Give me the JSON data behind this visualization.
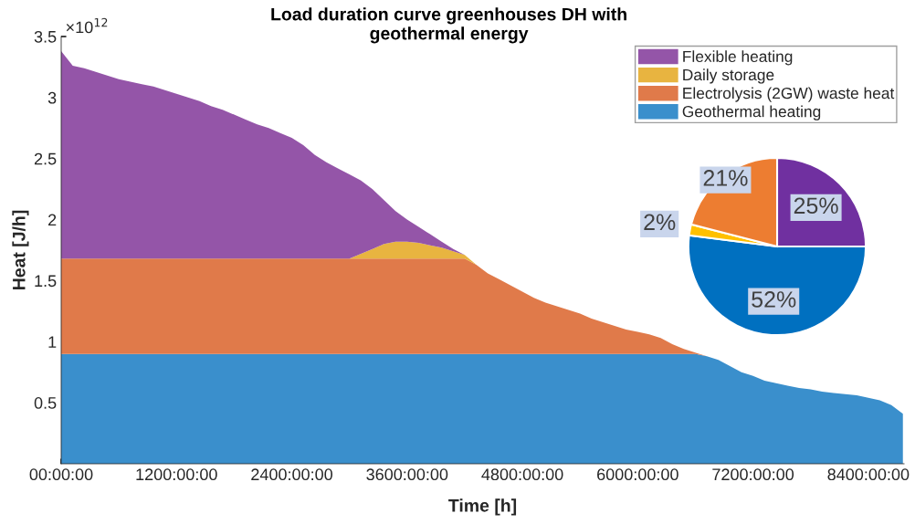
{
  "chart_data": [
    {
      "type": "area",
      "stacked": true,
      "title": "Load duration curve greenhouses DH with\ngeothermal energy",
      "xlabel": "Time [h]",
      "ylabel": "Heat [J/h]",
      "annotations": [
        "×10$^{12}$"
      ],
      "categories": [
        "00:00:00",
        null,
        null,
        null,
        null,
        null,
        null,
        null,
        null,
        null,
        "1200:00:00",
        null,
        null,
        null,
        null,
        null,
        null,
        null,
        null,
        null,
        "2400:00:00",
        null,
        null,
        null,
        null,
        null,
        null,
        null,
        null,
        null,
        "3600:00:00",
        null,
        null,
        null,
        null,
        null,
        null,
        null,
        null,
        null,
        "4800:00:00",
        null,
        null,
        null,
        null,
        null,
        null,
        null,
        null,
        null,
        "6000:00:00",
        null,
        null,
        null,
        null,
        null,
        null,
        null,
        null,
        null,
        "7200:00:00",
        null,
        null,
        null,
        null,
        null,
        null,
        null,
        null,
        null,
        "8400:00:00",
        null,
        null,
        null
      ],
      "series": [
        {
          "name": "Geothermal heating",
          "color": "#3a8fcc",
          "values": [
            0.9,
            0.9,
            0.9,
            0.9,
            0.9,
            0.9,
            0.9,
            0.9,
            0.9,
            0.9,
            0.9,
            0.9,
            0.9,
            0.9,
            0.9,
            0.9,
            0.9,
            0.9,
            0.9,
            0.9,
            0.9,
            0.9,
            0.9,
            0.9,
            0.9,
            0.9,
            0.9,
            0.9,
            0.9,
            0.9,
            0.9,
            0.9,
            0.9,
            0.9,
            0.9,
            0.9,
            0.9,
            0.9,
            0.9,
            0.9,
            0.9,
            0.9,
            0.9,
            0.9,
            0.9,
            0.9,
            0.9,
            0.9,
            0.9,
            0.9,
            0.9,
            0.9,
            0.9,
            0.9,
            0.9,
            0.9,
            0.88,
            0.85,
            0.8,
            0.75,
            0.72,
            0.68,
            0.66,
            0.64,
            0.62,
            0.61,
            0.59,
            0.58,
            0.57,
            0.56,
            0.54,
            0.52,
            0.48,
            0.41
          ]
        },
        {
          "name": "Electrolysis (2GW) waste heat",
          "color": "#e07a4a",
          "values": [
            0.78,
            0.78,
            0.78,
            0.78,
            0.78,
            0.78,
            0.78,
            0.78,
            0.78,
            0.78,
            0.78,
            0.78,
            0.78,
            0.78,
            0.78,
            0.78,
            0.78,
            0.78,
            0.78,
            0.78,
            0.78,
            0.78,
            0.78,
            0.78,
            0.78,
            0.78,
            0.78,
            0.78,
            0.78,
            0.78,
            0.78,
            0.78,
            0.78,
            0.78,
            0.78,
            0.78,
            0.73,
            0.66,
            0.61,
            0.56,
            0.51,
            0.46,
            0.42,
            0.39,
            0.36,
            0.33,
            0.29,
            0.26,
            0.23,
            0.2,
            0.18,
            0.16,
            0.13,
            0.08,
            0.04,
            0.01,
            0,
            0,
            0,
            0,
            0,
            0,
            0,
            0,
            0,
            0,
            0,
            0,
            0,
            0,
            0,
            0,
            0,
            0
          ]
        },
        {
          "name": "Daily storage",
          "color": "#e8b440",
          "values": [
            0,
            0,
            0,
            0,
            0,
            0,
            0,
            0,
            0,
            0,
            0,
            0,
            0,
            0,
            0,
            0,
            0,
            0,
            0,
            0,
            0,
            0,
            0,
            0,
            0,
            0,
            0.04,
            0.08,
            0.12,
            0.14,
            0.14,
            0.13,
            0.11,
            0.09,
            0.06,
            0.03,
            0,
            0,
            0,
            0,
            0,
            0,
            0,
            0,
            0,
            0,
            0,
            0,
            0,
            0,
            0,
            0,
            0,
            0,
            0,
            0,
            0,
            0,
            0,
            0,
            0,
            0,
            0,
            0,
            0,
            0,
            0,
            0,
            0,
            0,
            0,
            0,
            0,
            0
          ]
        },
        {
          "name": "Flexible heating",
          "color": "#9455a8",
          "values": [
            1.7,
            1.58,
            1.56,
            1.53,
            1.5,
            1.47,
            1.45,
            1.43,
            1.41,
            1.38,
            1.35,
            1.32,
            1.29,
            1.25,
            1.22,
            1.18,
            1.14,
            1.1,
            1.07,
            1.03,
            0.99,
            0.93,
            0.85,
            0.79,
            0.74,
            0.69,
            0.6,
            0.49,
            0.36,
            0.25,
            0.18,
            0.13,
            0.09,
            0.05,
            0.02,
            0,
            0,
            0,
            0,
            0,
            0,
            0,
            0,
            0,
            0,
            0,
            0,
            0,
            0,
            0,
            0,
            0,
            0,
            0,
            0,
            0,
            0,
            0,
            0,
            0,
            0,
            0,
            0,
            0,
            0,
            0,
            0,
            0,
            0,
            0,
            0,
            0,
            0,
            0
          ]
        }
      ],
      "ylim": [
        0,
        3.5
      ],
      "yticks": [
        0.5,
        1,
        1.5,
        2,
        2.5,
        3,
        3.5
      ],
      "legend": "top right",
      "grid": false
    },
    {
      "type": "pie",
      "categories": [
        null,
        null,
        null,
        null
      ],
      "values": [
        25,
        52,
        2,
        21
      ],
      "colors": [
        "#7030a0",
        "#0070c0",
        "#ffc000",
        "#ed7d31"
      ],
      "value_labels": [
        "25%",
        "52%",
        "2%",
        "21%"
      ]
    }
  ]
}
